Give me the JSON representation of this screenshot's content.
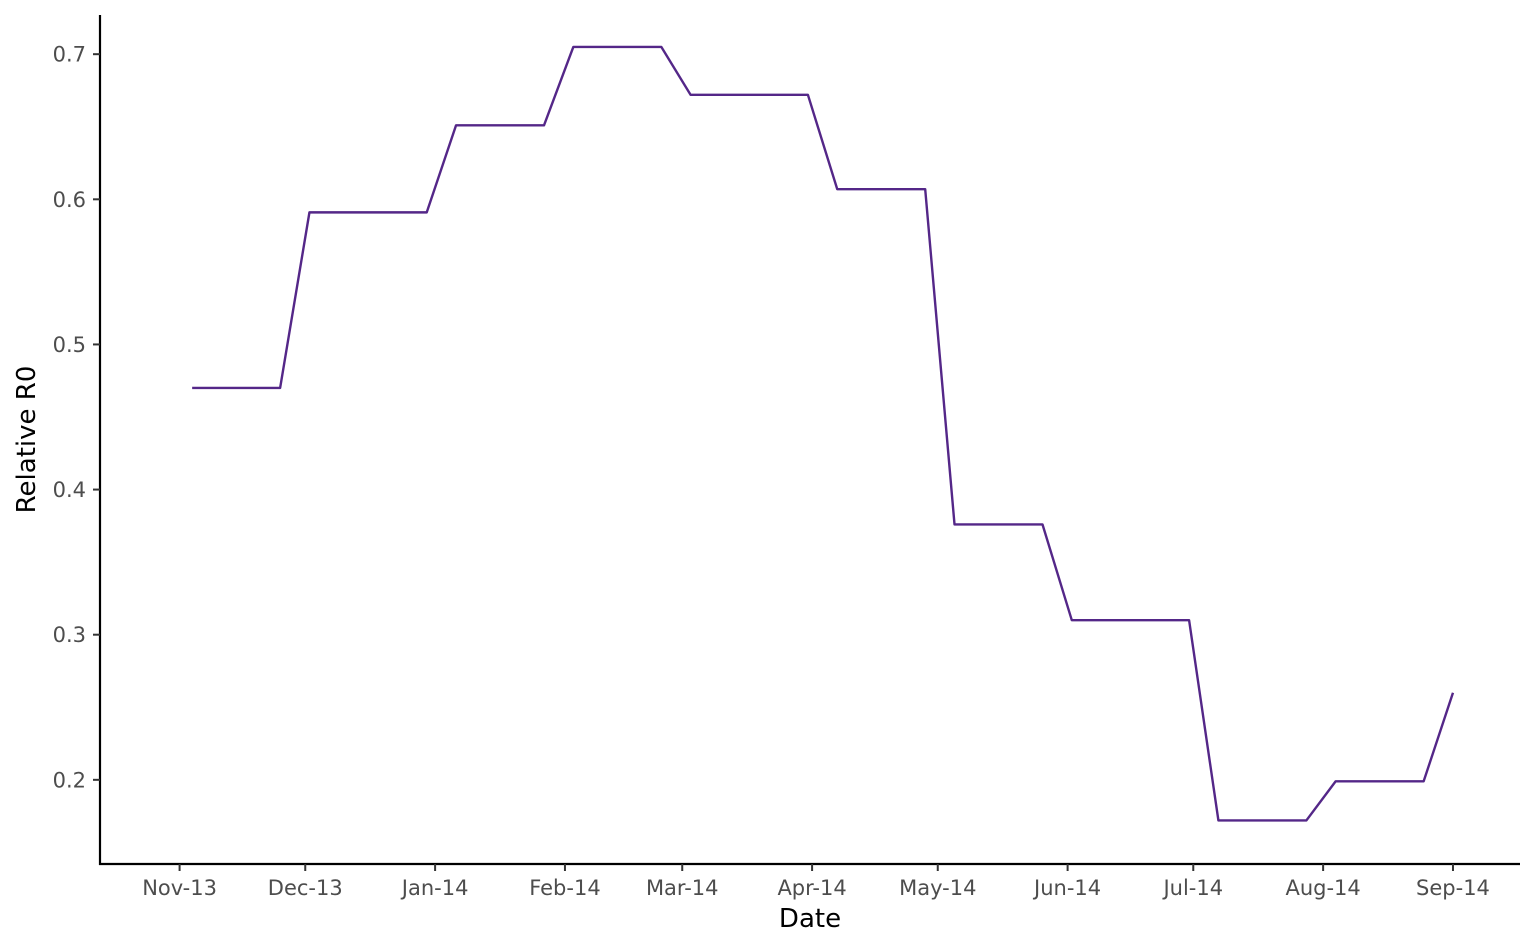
{
  "chart_data": {
    "type": "line",
    "xlabel": "Date",
    "ylabel": "Relative R0",
    "x_ticks": [
      {
        "date": "2013-11-01",
        "label": "Nov-13"
      },
      {
        "date": "2013-12-01",
        "label": "Dec-13"
      },
      {
        "date": "2014-01-01",
        "label": "Jan-14"
      },
      {
        "date": "2014-02-01",
        "label": "Feb-14"
      },
      {
        "date": "2014-03-01",
        "label": "Mar-14"
      },
      {
        "date": "2014-04-01",
        "label": "Apr-14"
      },
      {
        "date": "2014-05-01",
        "label": "May-14"
      },
      {
        "date": "2014-06-01",
        "label": "Jun-14"
      },
      {
        "date": "2014-07-01",
        "label": "Jul-14"
      },
      {
        "date": "2014-08-01",
        "label": "Aug-14"
      },
      {
        "date": "2014-09-01",
        "label": "Sep-14"
      }
    ],
    "y_ticks": [
      0.2,
      0.3,
      0.4,
      0.5,
      0.6,
      0.7
    ],
    "xlim": [
      "2013-10-13",
      "2014-09-17"
    ],
    "ylim": [
      0.142,
      0.727
    ],
    "grid": false,
    "series": [
      {
        "color": "#542788",
        "points": [
          {
            "x": "2013-11-04",
            "y": 0.47
          },
          {
            "x": "2013-11-25",
            "y": 0.47
          },
          {
            "x": "2013-12-02",
            "y": 0.591
          },
          {
            "x": "2013-12-30",
            "y": 0.591
          },
          {
            "x": "2014-01-06",
            "y": 0.651
          },
          {
            "x": "2014-01-27",
            "y": 0.651
          },
          {
            "x": "2014-02-03",
            "y": 0.705
          },
          {
            "x": "2014-02-24",
            "y": 0.705
          },
          {
            "x": "2014-03-03",
            "y": 0.672
          },
          {
            "x": "2014-03-31",
            "y": 0.672
          },
          {
            "x": "2014-04-07",
            "y": 0.607
          },
          {
            "x": "2014-04-28",
            "y": 0.607
          },
          {
            "x": "2014-05-05",
            "y": 0.376
          },
          {
            "x": "2014-05-26",
            "y": 0.376
          },
          {
            "x": "2014-06-02",
            "y": 0.31
          },
          {
            "x": "2014-06-30",
            "y": 0.31
          },
          {
            "x": "2014-07-07",
            "y": 0.172
          },
          {
            "x": "2014-07-28",
            "y": 0.172
          },
          {
            "x": "2014-08-04",
            "y": 0.199
          },
          {
            "x": "2014-08-25",
            "y": 0.199
          },
          {
            "x": "2014-09-01",
            "y": 0.26
          }
        ]
      }
    ]
  }
}
